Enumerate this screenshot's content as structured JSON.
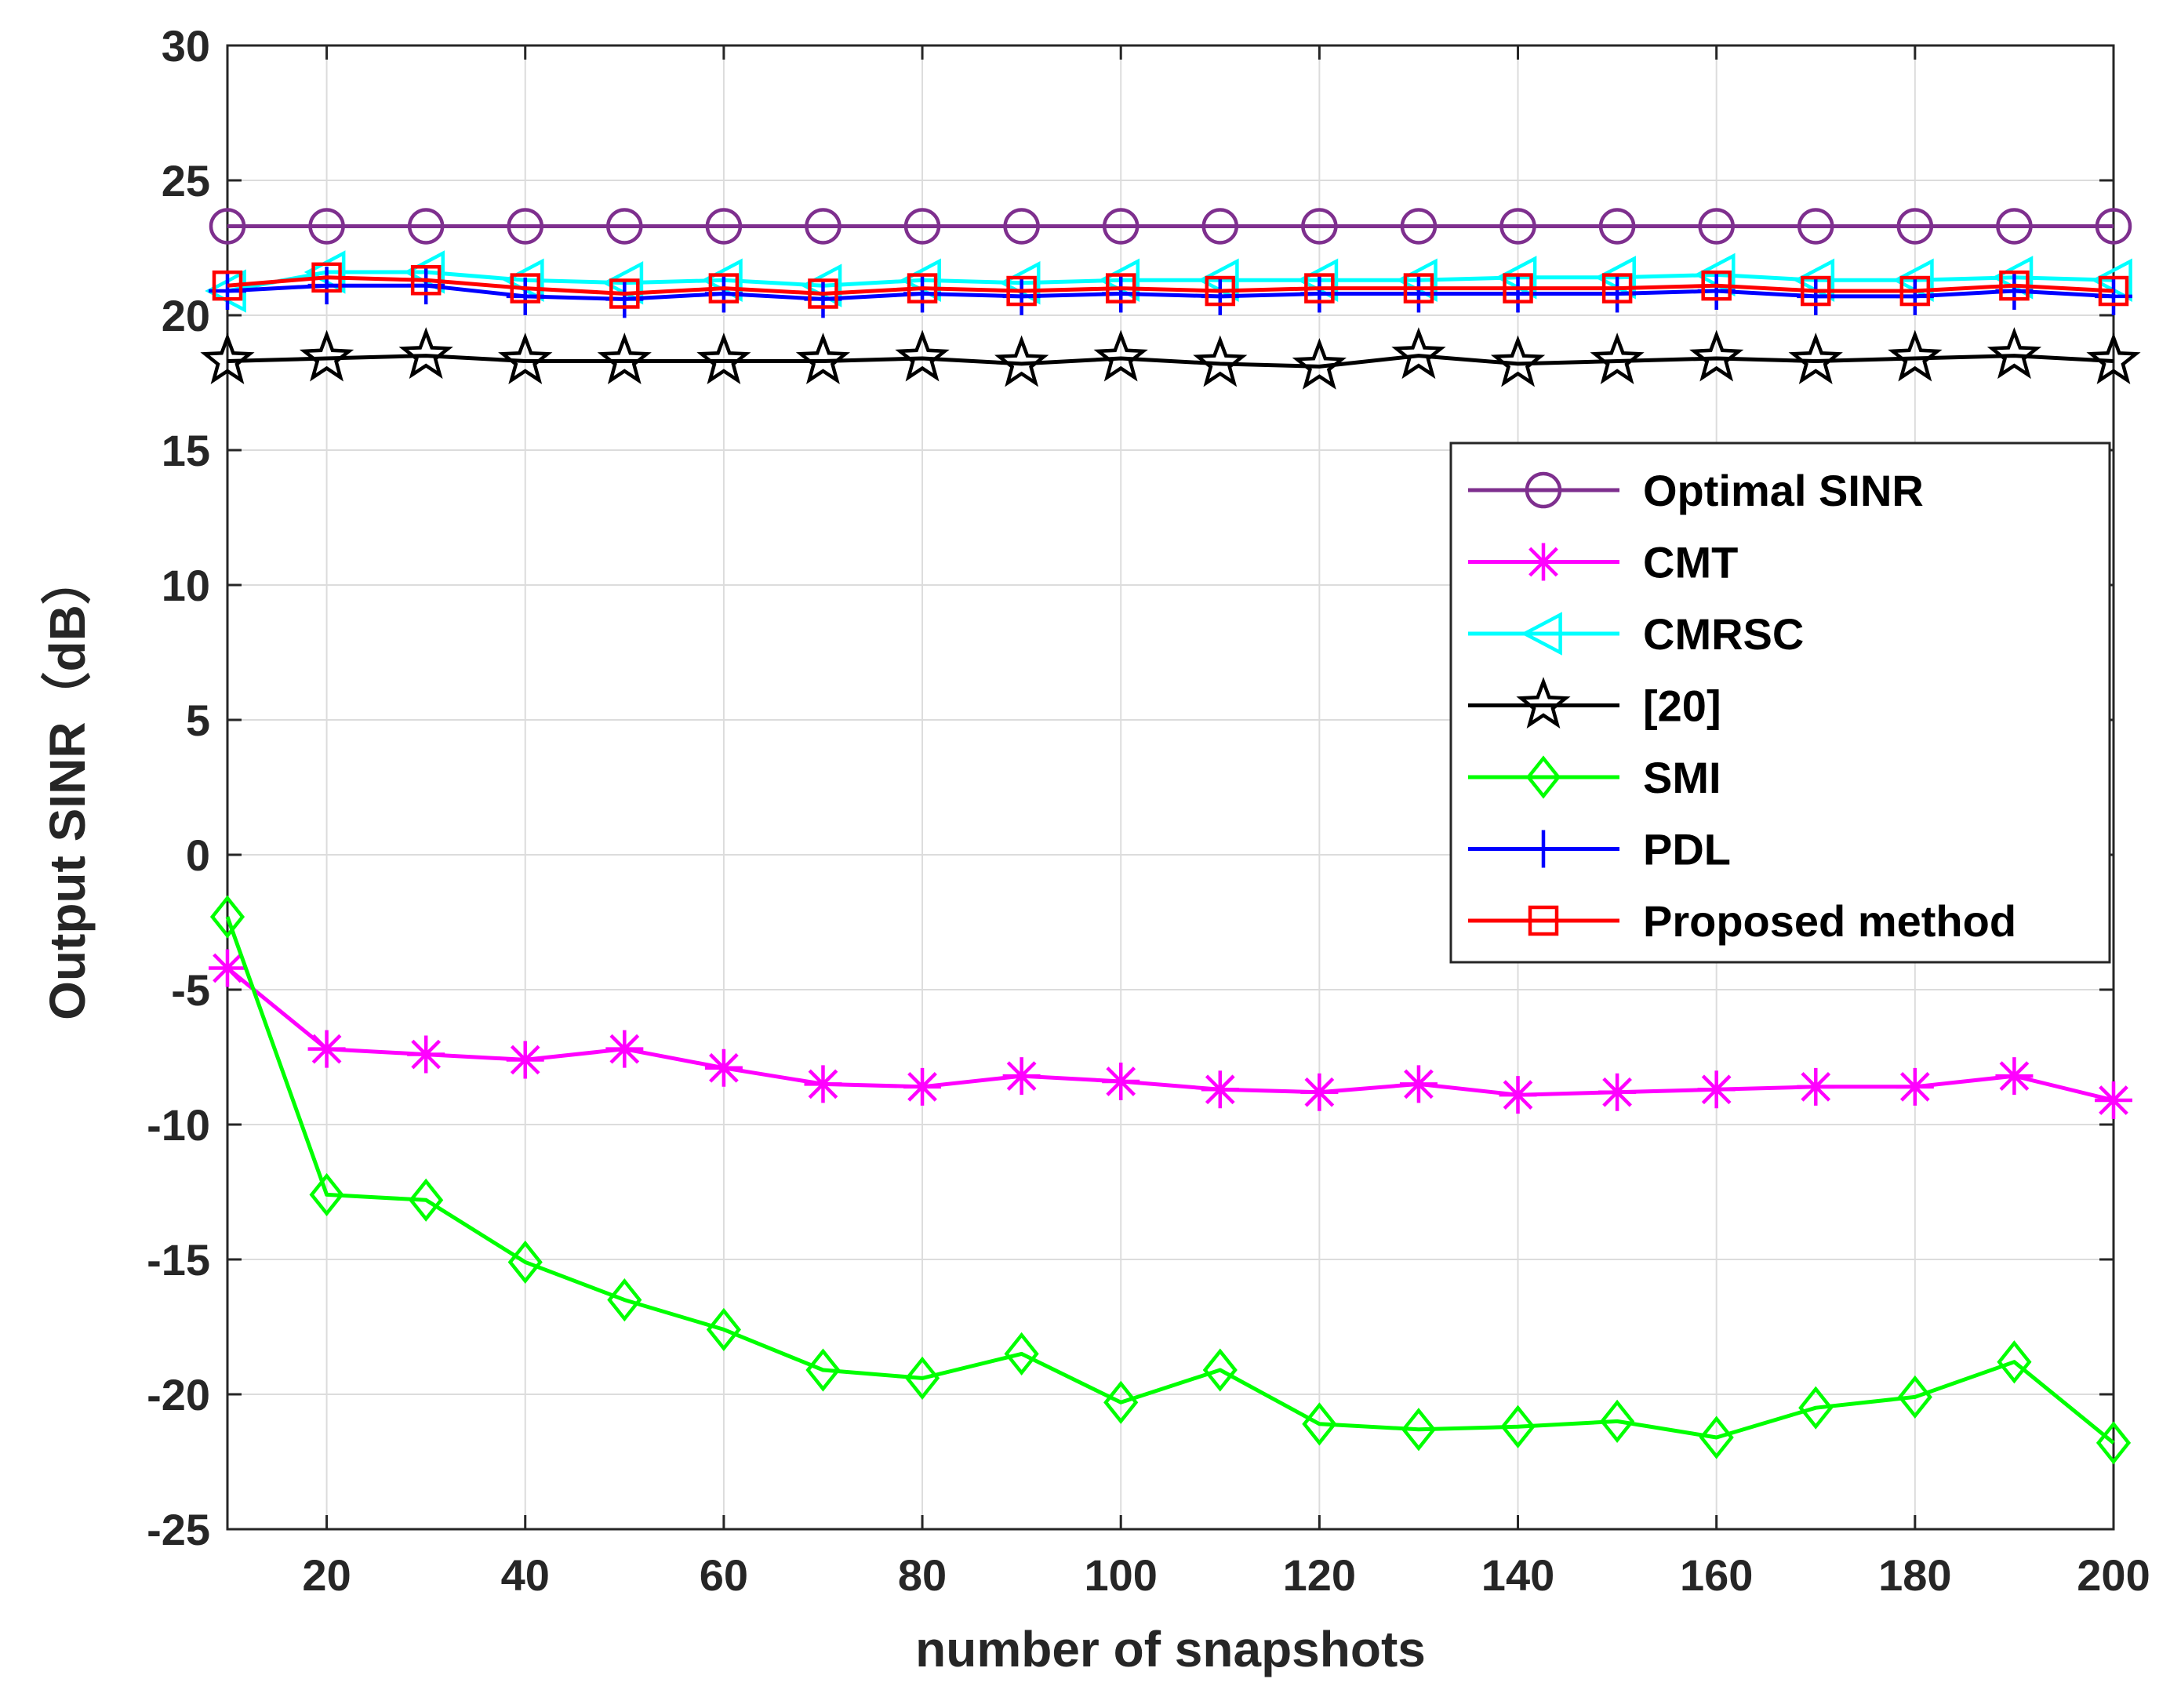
{
  "chart_data": {
    "type": "line",
    "title": "",
    "xlabel": "number of snapshots",
    "ylabel": "Output SINR（dB）",
    "xlim": [
      10,
      200
    ],
    "ylim": [
      -25,
      30
    ],
    "grid": true,
    "legend_position": "right",
    "x_ticks": [
      20,
      40,
      60,
      80,
      100,
      120,
      140,
      160,
      180,
      200
    ],
    "x_tick_labels": [
      "20",
      "40",
      "60",
      "80",
      "100",
      "120",
      "140",
      "160",
      "180",
      "200"
    ],
    "y_ticks": [
      -25,
      -20,
      -15,
      -10,
      -5,
      0,
      5,
      10,
      15,
      20,
      25,
      30
    ],
    "y_tick_labels": [
      "-25",
      "-20",
      "-15",
      "-10",
      "-5",
      "0",
      "5",
      "10",
      "15",
      "20",
      "25",
      "30"
    ],
    "x": [
      10,
      20,
      30,
      40,
      50,
      60,
      70,
      80,
      90,
      100,
      110,
      120,
      130,
      140,
      150,
      160,
      170,
      180,
      190,
      200
    ],
    "series": [
      {
        "name": "Optimal SINR",
        "color": "#7E2F8E",
        "marker": "circle",
        "values": [
          23.3,
          23.3,
          23.3,
          23.3,
          23.3,
          23.3,
          23.3,
          23.3,
          23.3,
          23.3,
          23.3,
          23.3,
          23.3,
          23.3,
          23.3,
          23.3,
          23.3,
          23.3,
          23.3,
          23.3
        ]
      },
      {
        "name": "CMT",
        "color": "#FF00FF",
        "marker": "asterisk",
        "values": [
          -4.2,
          -7.2,
          -7.4,
          -7.6,
          -7.2,
          -7.9,
          -8.5,
          -8.6,
          -8.2,
          -8.4,
          -8.7,
          -8.8,
          -8.5,
          -8.9,
          -8.8,
          -8.7,
          -8.6,
          -8.6,
          -8.2,
          -9.1
        ]
      },
      {
        "name": "CMRSC",
        "color": "#00FFFF",
        "marker": "triangle-left",
        "values": [
          20.9,
          21.6,
          21.6,
          21.3,
          21.2,
          21.3,
          21.1,
          21.3,
          21.2,
          21.3,
          21.3,
          21.3,
          21.3,
          21.4,
          21.4,
          21.5,
          21.3,
          21.3,
          21.4,
          21.3
        ]
      },
      {
        "name": "[20]",
        "color": "#000000",
        "marker": "pentagram",
        "values": [
          18.3,
          18.4,
          18.5,
          18.3,
          18.3,
          18.3,
          18.3,
          18.4,
          18.2,
          18.4,
          18.2,
          18.1,
          18.5,
          18.2,
          18.3,
          18.4,
          18.3,
          18.4,
          18.5,
          18.3
        ]
      },
      {
        "name": "SMI",
        "color": "#00FF00",
        "marker": "diamond",
        "values": [
          -2.3,
          -12.6,
          -12.8,
          -15.1,
          -16.5,
          -17.6,
          -19.1,
          -19.4,
          -18.5,
          -20.3,
          -19.1,
          -21.1,
          -21.3,
          -21.2,
          -21.0,
          -21.6,
          -20.5,
          -20.1,
          -18.8,
          -21.8
        ]
      },
      {
        "name": "PDL",
        "color": "#0000FF",
        "marker": "plus",
        "values": [
          20.9,
          21.1,
          21.1,
          20.7,
          20.6,
          20.8,
          20.6,
          20.8,
          20.7,
          20.8,
          20.7,
          20.8,
          20.8,
          20.8,
          20.8,
          20.9,
          20.7,
          20.7,
          20.9,
          20.7
        ]
      },
      {
        "name": "Proposed method",
        "color": "#FF0000",
        "marker": "square",
        "values": [
          21.1,
          21.4,
          21.3,
          21.0,
          20.8,
          21.0,
          20.8,
          21.0,
          20.9,
          21.0,
          20.9,
          21.0,
          21.0,
          21.0,
          21.0,
          21.1,
          20.9,
          20.9,
          21.1,
          20.9
        ]
      }
    ]
  }
}
